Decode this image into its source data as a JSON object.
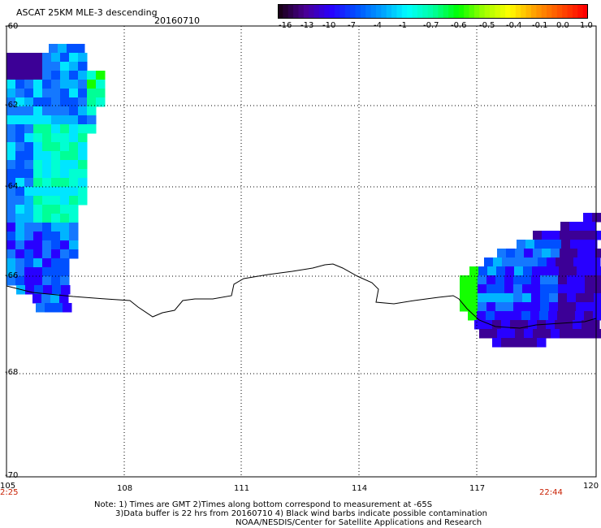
{
  "header": {
    "title": "ASCAT 25KM MLE-3 descending",
    "date": "20160710"
  },
  "colorbar": {
    "labels": [
      "-16",
      "-13",
      "-10",
      "-7",
      "-4",
      "-1",
      "-0.7",
      "-0.6",
      "-0.5",
      "-0.4",
      "-0.1",
      "0.0",
      "1.0"
    ],
    "colors": [
      "#1a001a",
      "#4b0096",
      "#2800ff",
      "#0050ff",
      "#00a0ff",
      "#00ffff",
      "#00ffa0",
      "#00ff00",
      "#a0ff00",
      "#ffff00",
      "#ffa000",
      "#ff5000",
      "#ff0000"
    ]
  },
  "axes": {
    "x_ticks": [
      "105",
      "108",
      "111",
      "114",
      "117",
      "120"
    ],
    "y_ticks": [
      "-60",
      "-62",
      "-64",
      "-66",
      "-68",
      "-70"
    ]
  },
  "times": {
    "left": "2:25",
    "right": "22:44"
  },
  "notes": {
    "line1": "Note: 1) Times are GMT 2)Times along bottom correspond to measurement at -65S",
    "line2": "3)Data buffer is 22 hrs from 20160710 4) Black wind barbs indicate possible contamination",
    "line3": "NOAA/NESDIS/Center for Satellite Applications and Research"
  }
}
